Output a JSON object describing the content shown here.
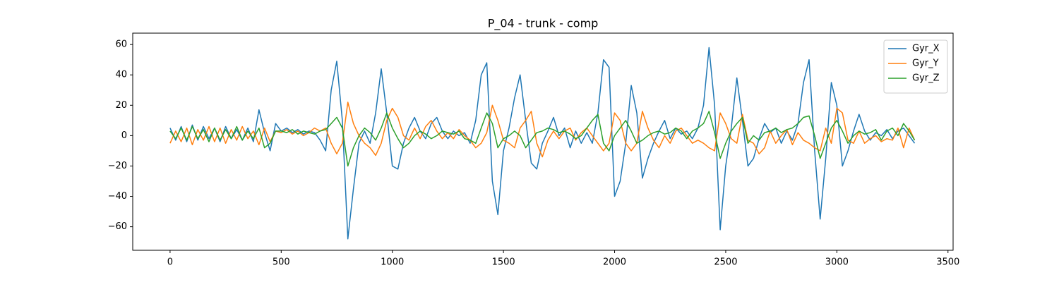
{
  "chart_data": {
    "type": "line",
    "title": "P_04 - trunk - comp",
    "x": [
      0,
      25,
      50,
      75,
      100,
      125,
      150,
      175,
      200,
      225,
      250,
      275,
      300,
      325,
      350,
      375,
      400,
      425,
      450,
      475,
      500,
      525,
      550,
      575,
      600,
      625,
      650,
      675,
      700,
      725,
      750,
      775,
      800,
      825,
      850,
      875,
      900,
      925,
      950,
      975,
      1000,
      1025,
      1050,
      1075,
      1100,
      1125,
      1150,
      1175,
      1200,
      1225,
      1250,
      1275,
      1300,
      1325,
      1350,
      1375,
      1400,
      1425,
      1450,
      1475,
      1500,
      1525,
      1550,
      1575,
      1600,
      1625,
      1650,
      1675,
      1700,
      1725,
      1750,
      1775,
      1800,
      1825,
      1850,
      1875,
      1900,
      1925,
      1950,
      1975,
      2000,
      2025,
      2050,
      2075,
      2100,
      2125,
      2150,
      2175,
      2200,
      2225,
      2250,
      2275,
      2300,
      2325,
      2350,
      2375,
      2400,
      2425,
      2450,
      2475,
      2500,
      2525,
      2550,
      2575,
      2600,
      2625,
      2650,
      2675,
      2700,
      2725,
      2750,
      2775,
      2800,
      2825,
      2850,
      2875,
      2900,
      2925,
      2950,
      2975,
      3000,
      3025,
      3050,
      3075,
      3100,
      3125,
      3150,
      3175,
      3200,
      3225,
      3250,
      3275,
      3300,
      3325,
      3350
    ],
    "series": [
      {
        "name": "Gyr_X",
        "color": "#1f77b4",
        "values": [
          5,
          -3,
          6,
          -4,
          7,
          -3,
          6,
          -2,
          5,
          -4,
          6,
          -2,
          4,
          -3,
          5,
          -4,
          17,
          2,
          -10,
          8,
          3,
          5,
          2,
          4,
          1,
          3,
          2,
          -3,
          -10,
          30,
          49,
          10,
          -68,
          -35,
          -5,
          3,
          -5,
          15,
          44,
          15,
          -20,
          -22,
          -5,
          5,
          12,
          3,
          -2,
          8,
          12,
          3,
          -2,
          3,
          0,
          2,
          -5,
          10,
          40,
          48,
          -30,
          -52,
          -10,
          5,
          25,
          40,
          10,
          -18,
          -22,
          -5,
          3,
          12,
          0,
          5,
          -8,
          3,
          -5,
          2,
          -5,
          15,
          50,
          45,
          -40,
          -30,
          -5,
          33,
          15,
          -28,
          -15,
          -5,
          3,
          10,
          -2,
          5,
          1,
          3,
          -2,
          5,
          20,
          58,
          20,
          -62,
          -20,
          5,
          38,
          10,
          -20,
          -15,
          -2,
          8,
          2,
          5,
          -5,
          3,
          -3,
          8,
          35,
          50,
          -10,
          -55,
          -15,
          35,
          20,
          -20,
          -10,
          3,
          14,
          3,
          -3,
          2,
          0,
          4,
          -2,
          3,
          5,
          0,
          -5
        ]
      },
      {
        "name": "Gyr_Y",
        "color": "#ff7f0e",
        "values": [
          -5,
          3,
          -4,
          5,
          -6,
          4,
          -3,
          6,
          -4,
          5,
          -5,
          4,
          -3,
          6,
          -2,
          3,
          -6,
          5,
          -4,
          3,
          2,
          4,
          1,
          3,
          0,
          2,
          5,
          3,
          5,
          -5,
          -12,
          -5,
          22,
          8,
          0,
          -5,
          -8,
          -13,
          -5,
          10,
          18,
          12,
          0,
          -3,
          5,
          -2,
          6,
          10,
          3,
          -2,
          2,
          -2,
          4,
          0,
          -3,
          -8,
          -5,
          2,
          20,
          10,
          -3,
          -5,
          -8,
          5,
          10,
          16,
          -5,
          -14,
          -3,
          3,
          -2,
          3,
          5,
          -3,
          2,
          5,
          0,
          -5,
          -10,
          -5,
          15,
          10,
          -5,
          -10,
          -5,
          16,
          5,
          -3,
          -8,
          0,
          -5,
          3,
          5,
          0,
          -5,
          -3,
          -5,
          -8,
          -10,
          15,
          8,
          -2,
          -5,
          14,
          -3,
          -5,
          -12,
          -8,
          3,
          -5,
          0,
          4,
          -6,
          2,
          -3,
          -5,
          -8,
          -10,
          5,
          -5,
          18,
          15,
          -3,
          -5,
          3,
          -5,
          -2,
          0,
          -4,
          -2,
          -3,
          5,
          -8,
          5,
          -3
        ]
      },
      {
        "name": "Gyr_Z",
        "color": "#2ca02c",
        "values": [
          3,
          -2,
          5,
          -3,
          6,
          -2,
          4,
          -4,
          5,
          -3,
          4,
          -2,
          6,
          -3,
          3,
          -2,
          5,
          -8,
          -5,
          3,
          3,
          2,
          4,
          1,
          3,
          2,
          1,
          3,
          4,
          8,
          12,
          5,
          -20,
          -8,
          0,
          5,
          2,
          -3,
          5,
          15,
          5,
          -2,
          -8,
          -5,
          0,
          3,
          1,
          -2,
          0,
          3,
          2,
          1,
          3,
          -2,
          -3,
          -5,
          5,
          15,
          8,
          -8,
          -2,
          0,
          3,
          0,
          -8,
          -3,
          2,
          3,
          5,
          4,
          2,
          3,
          1,
          -2,
          0,
          5,
          10,
          14,
          -5,
          -10,
          0,
          5,
          10,
          3,
          -5,
          -3,
          0,
          2,
          3,
          1,
          2,
          5,
          3,
          -2,
          3,
          5,
          8,
          16,
          2,
          -15,
          -5,
          3,
          8,
          12,
          -5,
          0,
          -3,
          2,
          3,
          5,
          2,
          4,
          5,
          8,
          12,
          13,
          0,
          -15,
          -5,
          5,
          10,
          3,
          -5,
          0,
          3,
          1,
          2,
          4,
          -3,
          3,
          5,
          0,
          8,
          3,
          -3
        ]
      }
    ],
    "xlim": [
      -168,
      3523
    ],
    "ylim": [
      -75.5,
      67.5
    ],
    "xticks": [
      0,
      500,
      1000,
      1500,
      2000,
      2500,
      3000,
      3500
    ],
    "yticks": [
      {
        "value": -60,
        "label": "−60"
      },
      {
        "value": -40,
        "label": "−40"
      },
      {
        "value": -20,
        "label": "−20"
      },
      0,
      20,
      40,
      60
    ],
    "legend": "upper right",
    "grid": false
  }
}
